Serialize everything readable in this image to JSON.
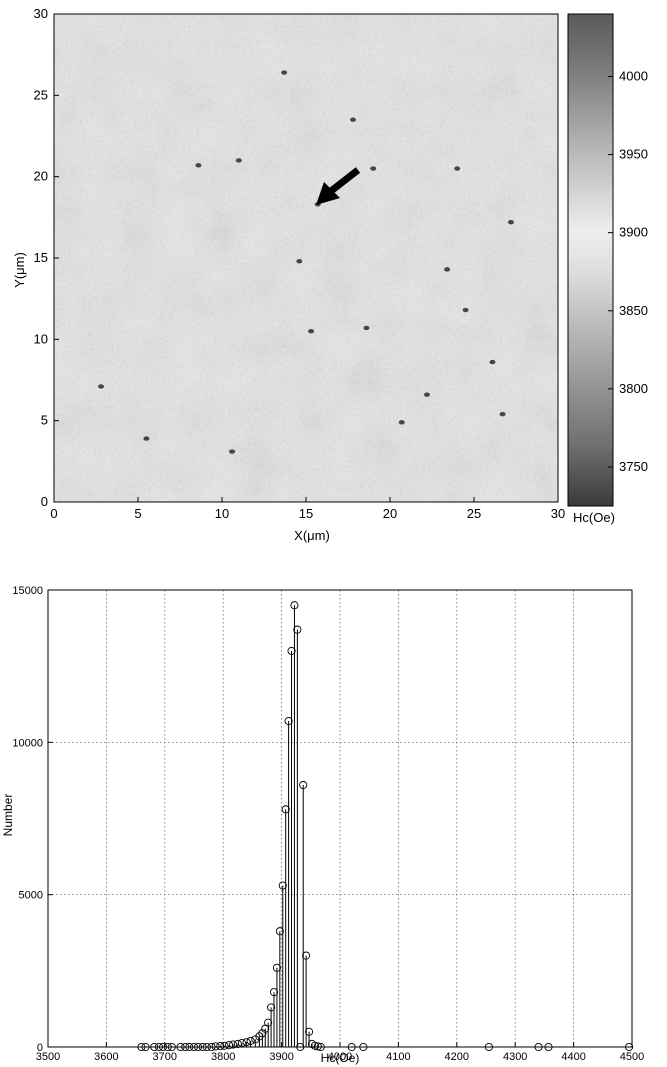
{
  "chart_data": [
    {
      "type": "heatmap",
      "xlabel": "X(μm)",
      "ylabel": "Y(μm)",
      "xlim": [
        0,
        30
      ],
      "ylim": [
        0,
        30
      ],
      "xticks": [
        "0",
        "5",
        "10",
        "15",
        "20",
        "25",
        "30"
      ],
      "yticks": [
        "0",
        "5",
        "10",
        "15",
        "20",
        "25",
        "30"
      ],
      "colorbar": {
        "label": "Hc(Oe)",
        "range": [
          3725,
          4040
        ],
        "ticks": [
          "3750",
          "3800",
          "3850",
          "3900",
          "3950",
          "4000"
        ]
      },
      "background_value_oe": 3915,
      "dark_defects_xy_um": [
        [
          11,
          21
        ],
        [
          13.7,
          26.4
        ],
        [
          15.7,
          18.3
        ],
        [
          19,
          20.5
        ],
        [
          17.8,
          23.5
        ],
        [
          14.6,
          14.8
        ],
        [
          23.4,
          14.3
        ],
        [
          15.3,
          10.5
        ],
        [
          18.6,
          10.7
        ],
        [
          24.5,
          11.8
        ],
        [
          26.1,
          8.6
        ],
        [
          20.7,
          4.9
        ],
        [
          10.6,
          3.1
        ],
        [
          22.2,
          6.6
        ],
        [
          8.6,
          20.7
        ],
        [
          27.2,
          17.2
        ],
        [
          5.5,
          3.9
        ],
        [
          2.8,
          7.1
        ],
        [
          26.7,
          5.4
        ],
        [
          24.0,
          20.5
        ]
      ],
      "annotation": {
        "type": "arrow",
        "points_to_xy_um": [
          15.7,
          18.3
        ]
      }
    },
    {
      "type": "bar",
      "style": "stem",
      "xlabel": "Hc(Oe)",
      "ylabel": "Number",
      "xlim": [
        3500,
        4500
      ],
      "ylim": [
        0,
        15000
      ],
      "grid": true,
      "xticks": [
        "3500",
        "3600",
        "3700",
        "3800",
        "3900",
        "4000",
        "4100",
        "4200",
        "4300",
        "4400",
        "4500"
      ],
      "yticks": [
        "0",
        "5000",
        "10000",
        "15000"
      ],
      "x": [
        3660,
        3667,
        3682,
        3690,
        3697,
        3705,
        3712,
        3727,
        3735,
        3742,
        3750,
        3757,
        3765,
        3772,
        3780,
        3787,
        3795,
        3802,
        3810,
        3817,
        3825,
        3832,
        3840,
        3847,
        3855,
        3862,
        3867,
        3872,
        3877,
        3882,
        3887,
        3892,
        3897,
        3902,
        3907,
        3912,
        3917,
        3922,
        3927,
        3932,
        3937,
        3942,
        3947,
        3952,
        3957,
        3962,
        3967,
        4020,
        4040,
        4255,
        4340,
        4357,
        4495
      ],
      "values": [
        0,
        0,
        0,
        0,
        0,
        0,
        0,
        0,
        0,
        0,
        0,
        0,
        0,
        0,
        0,
        20,
        30,
        40,
        60,
        80,
        100,
        130,
        160,
        200,
        250,
        350,
        450,
        600,
        800,
        1300,
        1800,
        2600,
        3800,
        5300,
        7800,
        10700,
        13000,
        14500,
        13700,
        0,
        8600,
        3000,
        500,
        100,
        40,
        20,
        0,
        0,
        0,
        0,
        0,
        0,
        0
      ]
    }
  ]
}
